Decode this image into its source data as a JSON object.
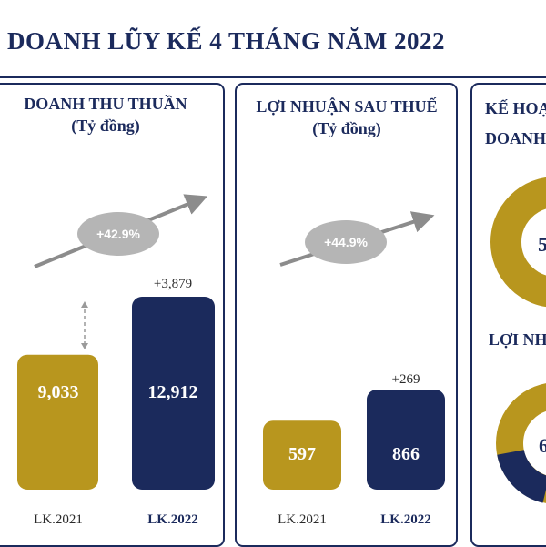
{
  "title": "DOANH LŨY KẾ 4 THÁNG NĂM 2022",
  "colors": {
    "navy": "#1b2a5c",
    "gold": "#b8961e",
    "grey": "#b5b5b5",
    "arrow_grey": "#8c8c8c"
  },
  "panels": {
    "revenue": {
      "title": "DOANH THU THUẦN",
      "unit": "(Tỷ đồng)"
    },
    "profit": {
      "title": "LỢI NHUẬN SAU THUẾ",
      "unit": "(Tỷ đồng)"
    },
    "plan": {
      "title_line1": "KẾ HOẠ",
      "title_line2": "DOANH",
      "label_profit": "LỢI NH",
      "donut1_value": "5",
      "donut2_value": "6"
    }
  },
  "chart_data": [
    {
      "type": "bar",
      "title": "DOANH THU THUẦN",
      "ylabel": "(Tỷ đồng)",
      "categories": [
        "LK.2021",
        "LK.2022"
      ],
      "values": [
        9033,
        12912
      ],
      "value_labels": [
        "9,033",
        "12,912"
      ],
      "difference_label": "+3,879",
      "growth_label": "+42.9%"
    },
    {
      "type": "bar",
      "title": "LỢI NHUẬN SAU THUẾ",
      "ylabel": "(Tỷ đồng)",
      "categories": [
        "LK.2021",
        "LK.2022"
      ],
      "values": [
        597,
        866
      ],
      "value_labels": [
        "597",
        "866"
      ],
      "difference_label": "+269",
      "growth_label": "+44.9%"
    }
  ]
}
